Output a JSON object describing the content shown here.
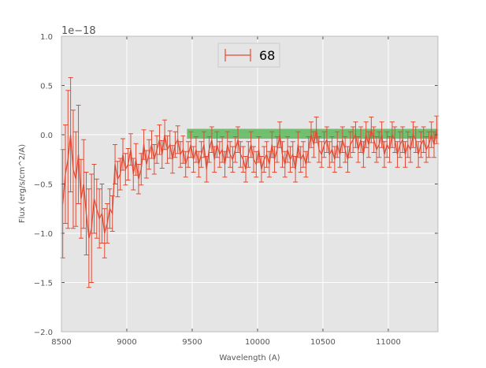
{
  "chart_data": {
    "type": "line",
    "title": "",
    "xlabel": "Wavelength (A)",
    "ylabel": "Flux (erg/s/cm^2/A)",
    "y_multiplier_label": "1e−18",
    "xlim": [
      8500,
      11380
    ],
    "ylim": [
      -2.0,
      1.0
    ],
    "x_ticks": [
      8500,
      9000,
      9500,
      10000,
      10500,
      11000
    ],
    "x_tick_labels": [
      "8500",
      "9000",
      "9500",
      "10000",
      "10500",
      "11000"
    ],
    "y_ticks": [
      1.0,
      0.5,
      0.0,
      -0.5,
      -1.0,
      -1.5,
      -2.0
    ],
    "y_tick_labels": [
      "1.0",
      "0.5",
      "0.0",
      "−0.5",
      "−1.0",
      "−1.5",
      "−2.0"
    ],
    "grid": true,
    "legend_position": "top-center",
    "legend": [
      "68"
    ],
    "band": {
      "x_range": [
        9460,
        11380
      ],
      "y_range": [
        -0.04,
        0.06
      ],
      "color": "#5cb85c"
    },
    "series": [
      {
        "name": "68",
        "color": "#e24a33",
        "x": [
          8510,
          8530,
          8550,
          8570,
          8590,
          8610,
          8630,
          8650,
          8670,
          8690,
          8710,
          8730,
          8750,
          8770,
          8790,
          8810,
          8830,
          8850,
          8870,
          8890,
          8910,
          8930,
          8950,
          8970,
          8990,
          9010,
          9030,
          9050,
          9070,
          9090,
          9110,
          9130,
          9150,
          9170,
          9190,
          9210,
          9230,
          9250,
          9270,
          9290,
          9310,
          9330,
          9350,
          9370,
          9390,
          9410,
          9430,
          9450,
          9470,
          9490,
          9510,
          9530,
          9550,
          9570,
          9590,
          9610,
          9630,
          9650,
          9670,
          9690,
          9710,
          9730,
          9750,
          9770,
          9790,
          9810,
          9830,
          9850,
          9870,
          9890,
          9910,
          9930,
          9950,
          9970,
          9990,
          10010,
          10030,
          10050,
          10070,
          10090,
          10110,
          10130,
          10150,
          10170,
          10190,
          10210,
          10230,
          10250,
          10270,
          10290,
          10310,
          10330,
          10350,
          10370,
          10390,
          10410,
          10430,
          10450,
          10470,
          10490,
          10510,
          10530,
          10550,
          10570,
          10590,
          10610,
          10630,
          10650,
          10670,
          10690,
          10710,
          10730,
          10750,
          10770,
          10790,
          10810,
          10830,
          10850,
          10870,
          10890,
          10910,
          10930,
          10950,
          10970,
          10990,
          11010,
          11030,
          11050,
          11070,
          11090,
          11110,
          11130,
          11150,
          11170,
          11190,
          11210,
          11230,
          11250,
          11270,
          11290,
          11310,
          11330,
          11350,
          11370
        ],
        "y": [
          -0.7,
          -0.4,
          -0.25,
          0.0,
          -0.35,
          -0.45,
          -0.2,
          -0.65,
          -0.5,
          -0.8,
          -1.05,
          -0.95,
          -0.65,
          -0.75,
          -0.85,
          -0.8,
          -1.0,
          -0.9,
          -0.75,
          -0.8,
          -0.3,
          -0.45,
          -0.4,
          -0.2,
          -0.35,
          -0.3,
          -0.15,
          -0.4,
          -0.25,
          -0.45,
          -0.35,
          -0.1,
          -0.3,
          -0.2,
          -0.1,
          -0.25,
          -0.15,
          -0.05,
          -0.2,
          0.0,
          -0.15,
          -0.1,
          -0.25,
          -0.1,
          -0.05,
          -0.2,
          -0.15,
          -0.3,
          -0.2,
          -0.1,
          -0.25,
          -0.15,
          -0.3,
          -0.2,
          -0.1,
          -0.35,
          -0.15,
          -0.05,
          -0.25,
          -0.1,
          -0.2,
          -0.15,
          -0.3,
          -0.1,
          -0.2,
          -0.25,
          -0.15,
          -0.05,
          -0.2,
          -0.25,
          -0.35,
          -0.2,
          -0.1,
          -0.25,
          -0.3,
          -0.15,
          -0.35,
          -0.25,
          -0.2,
          -0.3,
          -0.1,
          -0.25,
          -0.15,
          0.0,
          -0.2,
          -0.3,
          -0.15,
          -0.25,
          -0.2,
          -0.35,
          -0.1,
          -0.25,
          -0.2,
          -0.3,
          -0.15,
          0.0,
          -0.1,
          0.05,
          -0.15,
          -0.2,
          -0.1,
          -0.05,
          -0.2,
          -0.15,
          -0.25,
          -0.1,
          -0.2,
          -0.05,
          -0.15,
          -0.25,
          -0.1,
          -0.05,
          0.0,
          -0.15,
          -0.05,
          -0.2,
          0.0,
          -0.1,
          0.05,
          -0.05,
          -0.15,
          -0.1,
          0.0,
          -0.2,
          -0.1,
          -0.15,
          0.0,
          -0.05,
          -0.2,
          -0.1,
          -0.05,
          -0.2,
          -0.1,
          -0.15,
          0.0,
          -0.05,
          -0.2,
          -0.1,
          -0.05,
          -0.15,
          -0.1,
          0.0,
          -0.1,
          0.05
        ],
        "err": [
          0.55,
          0.5,
          0.7,
          0.58,
          0.6,
          0.48,
          0.5,
          0.4,
          0.45,
          0.42,
          0.5,
          0.55,
          0.35,
          0.3,
          0.3,
          0.3,
          0.25,
          0.2,
          0.2,
          0.18,
          0.2,
          0.18,
          0.16,
          0.16,
          0.16,
          0.16,
          0.16,
          0.16,
          0.16,
          0.15,
          0.16,
          0.15,
          0.14,
          0.15,
          0.14,
          0.15,
          0.14,
          0.15,
          0.14,
          0.15,
          0.14,
          0.14,
          0.14,
          0.13,
          0.14,
          0.13,
          0.14,
          0.13,
          0.13,
          0.13,
          0.13,
          0.13,
          0.13,
          0.13,
          0.13,
          0.13,
          0.13,
          0.13,
          0.13,
          0.13,
          0.13,
          0.13,
          0.13,
          0.13,
          0.13,
          0.13,
          0.13,
          0.13,
          0.13,
          0.13,
          0.13,
          0.13,
          0.13,
          0.13,
          0.13,
          0.13,
          0.13,
          0.13,
          0.13,
          0.13,
          0.13,
          0.13,
          0.13,
          0.13,
          0.13,
          0.13,
          0.13,
          0.13,
          0.13,
          0.13,
          0.13,
          0.13,
          0.13,
          0.13,
          0.13,
          0.13,
          0.13,
          0.13,
          0.13,
          0.13,
          0.13,
          0.13,
          0.13,
          0.13,
          0.13,
          0.13,
          0.13,
          0.13,
          0.13,
          0.13,
          0.13,
          0.13,
          0.13,
          0.13,
          0.13,
          0.13,
          0.13,
          0.13,
          0.13,
          0.13,
          0.13,
          0.13,
          0.13,
          0.13,
          0.13,
          0.13,
          0.13,
          0.13,
          0.13,
          0.13,
          0.13,
          0.13,
          0.13,
          0.13,
          0.13,
          0.13,
          0.13,
          0.13,
          0.13,
          0.13,
          0.13,
          0.13,
          0.13,
          0.14
        ]
      }
    ]
  }
}
